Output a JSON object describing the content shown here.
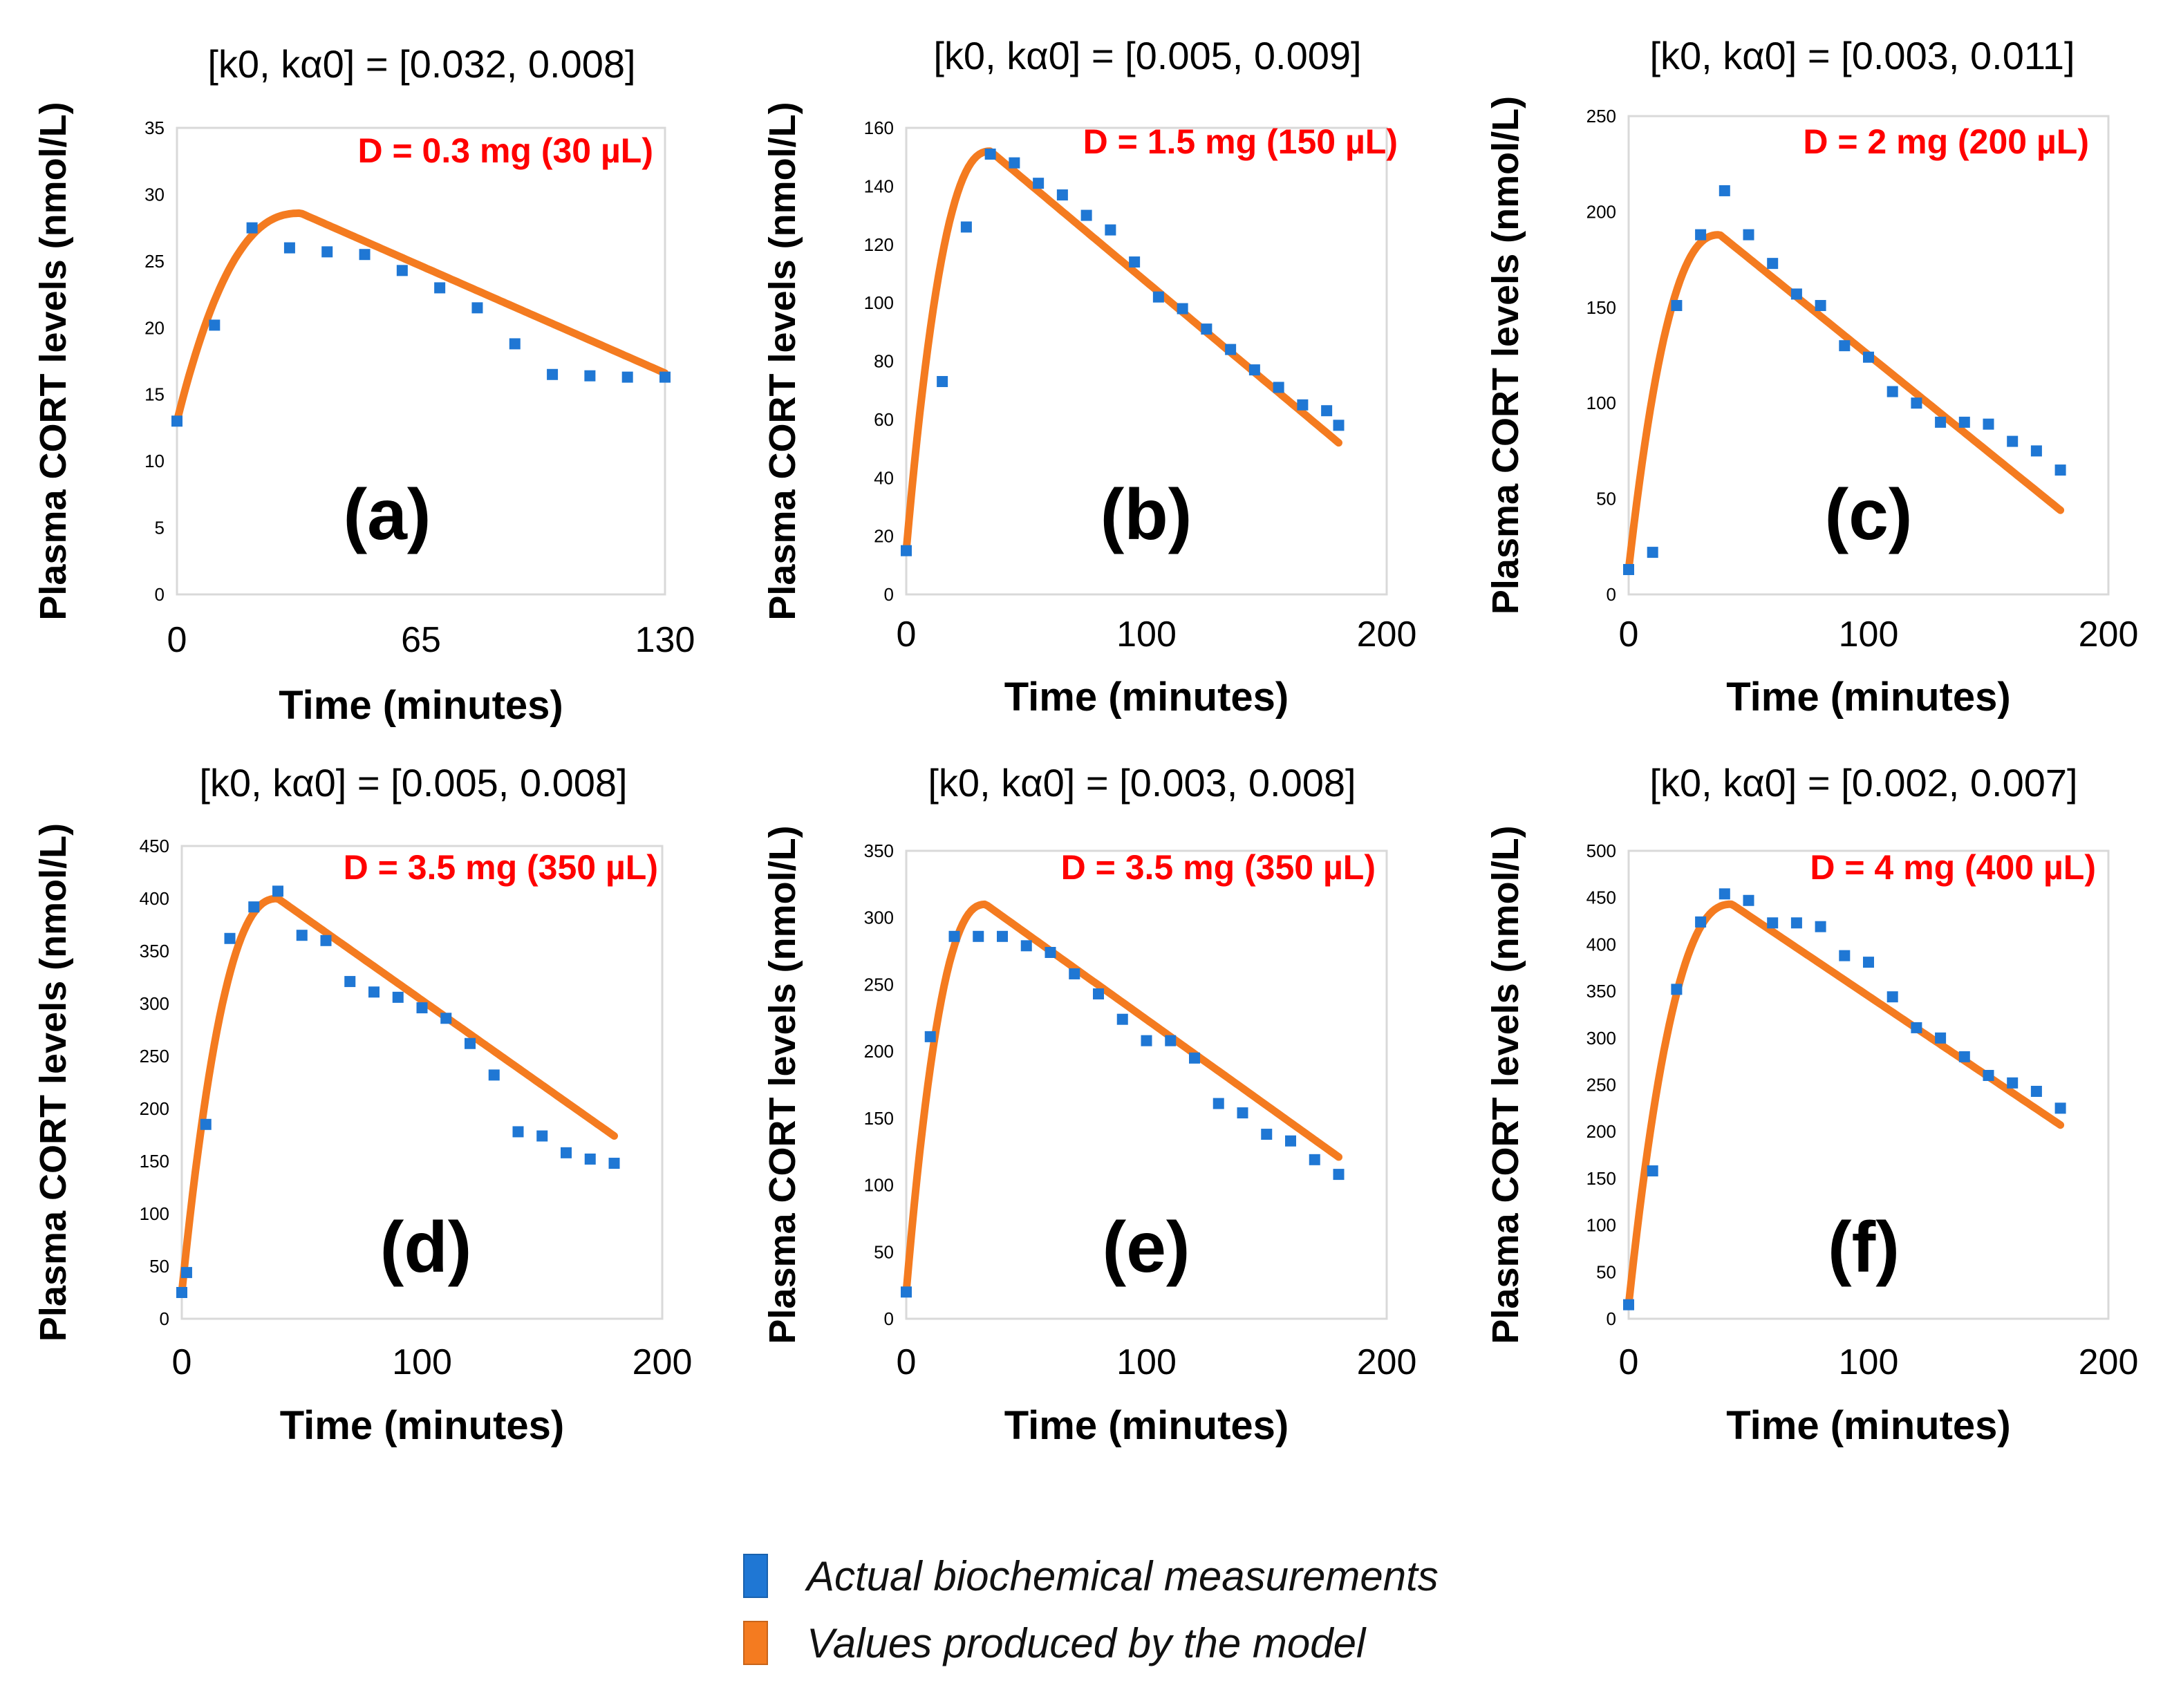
{
  "colors": {
    "measured": "#1f77d4",
    "model": "#f47b20",
    "dose_text": "#ff0000",
    "axis": "#d9d9d9",
    "text": "#000000"
  },
  "legend": {
    "measured_label": "Actual biochemical measurements",
    "model_label": "Values produced by the model"
  },
  "chart_data": [
    {
      "type": "scatter",
      "panel": "(a)",
      "title": "[k0, kα0] = [0.032, 0.008]",
      "params": {
        "k0": "0.032",
        "ka0": "0.008"
      },
      "dose": "D = 0.3 mg (30 µL)",
      "xlabel": "Time (minutes)",
      "ylabel": "Plasma CORT levels (nmol/L)",
      "xlim": [
        0,
        130
      ],
      "ylim": [
        0,
        35
      ],
      "xticks": [
        0,
        65,
        130
      ],
      "yticks": [
        0,
        5,
        10,
        15,
        20,
        25,
        30,
        35
      ],
      "model": {
        "y0": 13,
        "peak_t": 33,
        "peak_y": 28.6,
        "t_end": 130,
        "y_end": 16.6
      },
      "series": [
        {
          "name": "Actual biochemical measurements",
          "x": [
            0,
            10,
            20,
            30,
            40,
            50,
            60,
            70,
            80,
            90,
            100,
            110,
            120,
            130
          ],
          "y": [
            13,
            20.2,
            27.5,
            26,
            25.7,
            25.5,
            24.3,
            23,
            21.5,
            18.8,
            16.5,
            16.4,
            16.3,
            16.3
          ]
        }
      ]
    },
    {
      "type": "scatter",
      "panel": "(b)",
      "title": "[k0, kα0] = [0.005, 0.009]",
      "params": {
        "k0": "0.005",
        "ka0": "0.009"
      },
      "dose": "D = 1.5 mg (150 µL)",
      "xlabel": "Time (minutes)",
      "ylabel": "Plasma CORT levels (nmol/L)",
      "xlim": [
        0,
        200
      ],
      "ylim": [
        0,
        160
      ],
      "xticks": [
        0,
        100,
        200
      ],
      "yticks": [
        0,
        20,
        40,
        60,
        80,
        100,
        120,
        140,
        160
      ],
      "model": {
        "y0": 15,
        "peak_t": 35,
        "peak_y": 152,
        "t_end": 180,
        "y_end": 52
      },
      "series": [
        {
          "name": "Actual biochemical measurements",
          "x": [
            0,
            15,
            25,
            35,
            45,
            55,
            65,
            75,
            85,
            95,
            105,
            115,
            125,
            135,
            145,
            155,
            165,
            175,
            180
          ],
          "y": [
            15,
            73,
            126,
            151,
            148,
            141,
            137,
            130,
            125,
            114,
            102,
            98,
            91,
            84,
            77,
            71,
            65,
            63,
            58
          ]
        }
      ]
    },
    {
      "type": "scatter",
      "panel": "(c)",
      "title": "[k0, kα0] = [0.003, 0.011]",
      "params": {
        "k0": "0.003",
        "ka0": "0.011"
      },
      "dose": "D = 2 mg (200 µL)",
      "xlabel": "Time (minutes)",
      "ylabel": "Plasma CORT levels (nmol/L)",
      "xlim": [
        0,
        200
      ],
      "ylim": [
        0,
        250
      ],
      "xticks": [
        0,
        100,
        200
      ],
      "yticks": [
        0,
        50,
        100,
        150,
        200,
        250
      ],
      "model": {
        "y0": 13,
        "peak_t": 38,
        "peak_y": 188,
        "t_end": 180,
        "y_end": 44
      },
      "series": [
        {
          "name": "Actual biochemical measurements",
          "x": [
            0,
            10,
            20,
            30,
            40,
            50,
            60,
            70,
            80,
            90,
            100,
            110,
            120,
            130,
            140,
            150,
            160,
            170,
            180
          ],
          "y": [
            13,
            22,
            151,
            188,
            211,
            188,
            173,
            157,
            151,
            130,
            124,
            106,
            100,
            90,
            90,
            89,
            80,
            75,
            65
          ]
        }
      ]
    },
    {
      "type": "scatter",
      "panel": "(d)",
      "title": "[k0, kα0] = [0.005, 0.008]",
      "params": {
        "k0": "0.005",
        "ka0": "0.008"
      },
      "dose": "D = 3.5 mg (350 µL)",
      "xlabel": "Time (minutes)",
      "ylabel": "Plasma CORT levels (nmol/L)",
      "xlim": [
        0,
        200
      ],
      "ylim": [
        0,
        450
      ],
      "xticks": [
        0,
        100,
        200
      ],
      "yticks": [
        0,
        50,
        100,
        150,
        200,
        250,
        300,
        350,
        400,
        450
      ],
      "model": {
        "y0": 25,
        "peak_t": 40,
        "peak_y": 400,
        "t_end": 180,
        "y_end": 174
      },
      "series": [
        {
          "name": "Actual biochemical measurements",
          "x": [
            0,
            2,
            10,
            20,
            30,
            40,
            50,
            60,
            70,
            80,
            90,
            100,
            110,
            120,
            130,
            140,
            150,
            160,
            170,
            180
          ],
          "y": [
            25,
            44,
            185,
            362,
            392,
            407,
            365,
            360,
            321,
            311,
            306,
            296,
            286,
            262,
            232,
            178,
            174,
            158,
            152,
            148
          ]
        }
      ]
    },
    {
      "type": "scatter",
      "panel": "(e)",
      "title": "[k0, kα0] = [0.003, 0.008]",
      "params": {
        "k0": "0.003",
        "ka0": "0.008"
      },
      "dose": "D = 3.5 mg (350 µL)",
      "xlabel": "Time (minutes)",
      "ylabel": "Plasma CORT levels (nmol/L)",
      "xlim": [
        0,
        200
      ],
      "ylim": [
        0,
        350
      ],
      "xticks": [
        0,
        100,
        200
      ],
      "yticks": [
        0,
        50,
        100,
        150,
        200,
        250,
        300,
        350
      ],
      "model": {
        "y0": 20,
        "peak_t": 33,
        "peak_y": 310,
        "t_end": 180,
        "y_end": 121
      },
      "series": [
        {
          "name": "Actual biochemical measurements",
          "x": [
            0,
            10,
            20,
            30,
            40,
            50,
            60,
            70,
            80,
            90,
            100,
            110,
            120,
            130,
            140,
            150,
            160,
            170,
            180
          ],
          "y": [
            20,
            211,
            286,
            286,
            286,
            279,
            274,
            258,
            243,
            224,
            208,
            208,
            195,
            161,
            154,
            138,
            133,
            119,
            108
          ]
        }
      ]
    },
    {
      "type": "scatter",
      "panel": "(f)",
      "title": "[k0, kα0] = [0.002, 0.007]",
      "params": {
        "k0": "0.002",
        "ka0": "0.007"
      },
      "dose": "D = 4 mg (400 µL)",
      "xlabel": "Time (minutes)",
      "ylabel": "Plasma CORT levels (nmol/L)",
      "xlim": [
        0,
        200
      ],
      "ylim": [
        0,
        500
      ],
      "xticks": [
        0,
        100,
        200
      ],
      "yticks": [
        0,
        50,
        100,
        150,
        200,
        250,
        300,
        350,
        400,
        450,
        500
      ],
      "model": {
        "y0": 15,
        "peak_t": 43,
        "peak_y": 443,
        "t_end": 180,
        "y_end": 207
      },
      "series": [
        {
          "name": "Actual biochemical measurements",
          "x": [
            0,
            10,
            20,
            30,
            40,
            50,
            60,
            70,
            80,
            90,
            100,
            110,
            120,
            130,
            140,
            150,
            160,
            170,
            180
          ],
          "y": [
            15,
            158,
            352,
            424,
            454,
            447,
            423,
            423,
            419,
            388,
            381,
            344,
            311,
            300,
            280,
            260,
            252,
            243,
            225
          ]
        }
      ]
    }
  ]
}
